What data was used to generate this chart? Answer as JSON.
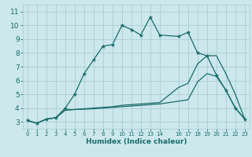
{
  "title": "",
  "xlabel": "Humidex (Indice chaleur)",
  "ylabel": "",
  "bg_color": "#cce8ec",
  "grid_color": "#aacdd4",
  "line_color": "#1a6b6b",
  "xlim": [
    -0.5,
    23.5
  ],
  "ylim": [
    2.5,
    11.5
  ],
  "xticks": [
    0,
    1,
    2,
    3,
    4,
    5,
    6,
    7,
    8,
    9,
    10,
    11,
    12,
    13,
    14,
    16,
    17,
    18,
    19,
    20,
    21,
    22,
    23
  ],
  "yticks": [
    3,
    4,
    5,
    6,
    7,
    8,
    9,
    10,
    11
  ],
  "line1_x": [
    0,
    1,
    2,
    3,
    4,
    5,
    6,
    7,
    8,
    9,
    10,
    11,
    12,
    13,
    14,
    16,
    17,
    18,
    19,
    20,
    21,
    22,
    23
  ],
  "line1_y": [
    3.1,
    2.9,
    3.2,
    3.3,
    4.0,
    5.0,
    6.5,
    7.5,
    8.5,
    8.6,
    10.0,
    9.7,
    9.3,
    10.6,
    9.3,
    9.2,
    9.5,
    8.0,
    7.8,
    6.4,
    5.3,
    4.0,
    3.2
  ],
  "line2_x": [
    0,
    1,
    2,
    3,
    4,
    5,
    6,
    7,
    8,
    9,
    10,
    11,
    12,
    13,
    14,
    16,
    17,
    18,
    19,
    20,
    21,
    22,
    23
  ],
  "line2_y": [
    3.1,
    2.9,
    3.2,
    3.3,
    3.85,
    3.9,
    3.92,
    3.95,
    4.0,
    4.05,
    4.1,
    4.15,
    4.2,
    4.25,
    4.3,
    4.5,
    4.6,
    5.9,
    6.5,
    6.3,
    5.3,
    4.0,
    3.2
  ],
  "line3_x": [
    0,
    1,
    2,
    3,
    4,
    5,
    6,
    7,
    8,
    9,
    10,
    11,
    12,
    13,
    14,
    16,
    17,
    18,
    19,
    20,
    21,
    22,
    23
  ],
  "line3_y": [
    3.1,
    2.9,
    3.2,
    3.3,
    3.85,
    3.9,
    3.95,
    4.0,
    4.05,
    4.1,
    4.2,
    4.25,
    4.3,
    4.35,
    4.4,
    5.5,
    5.8,
    7.2,
    7.8,
    7.8,
    6.5,
    5.0,
    3.2
  ]
}
